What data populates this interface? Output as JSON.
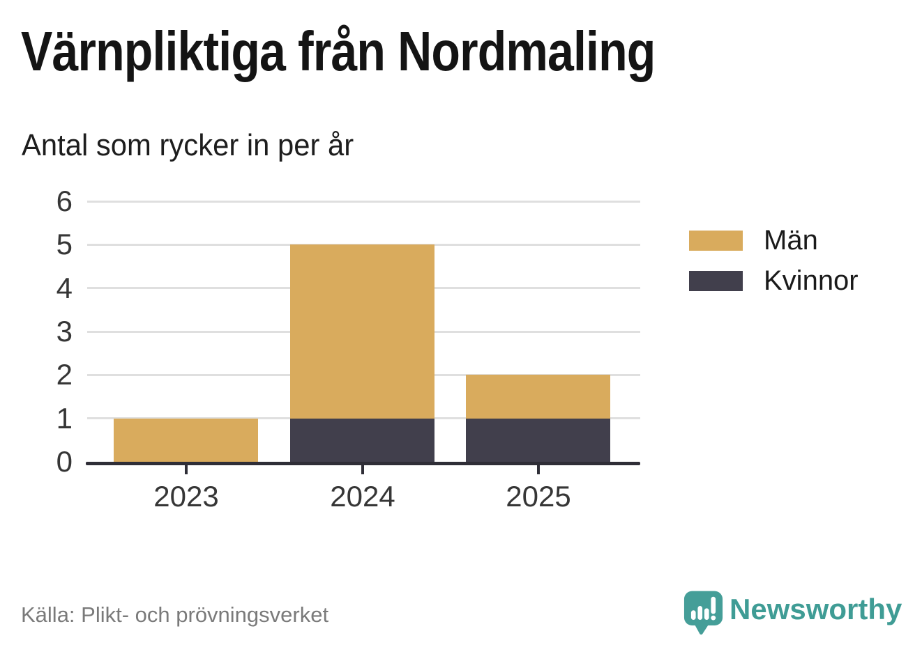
{
  "title": "Värnpliktiga från Nordmaling",
  "subtitle": "Antal som rycker in per år",
  "source": "Källa: Plikt- och prövningsverket",
  "branding": {
    "name": "Newsworthy",
    "icon": "newsworthy-speech-bubble-chart-icon",
    "icon_color": "#459e98",
    "text_color": "#3f9c95"
  },
  "legend": {
    "position": "right",
    "items": [
      {
        "label": "Män",
        "color": "#d9ab5d"
      },
      {
        "label": "Kvinnor",
        "color": "#413f4c"
      }
    ]
  },
  "colors": {
    "men_bar": "#d9ab5d",
    "women_bar": "#413f4c",
    "gridline": "#dfdfdf",
    "axis_line": "#2f2e37",
    "tick_label": "#363636",
    "source_text": "#7a7a7a"
  },
  "chart_data": {
    "type": "bar",
    "stacked": true,
    "title": "Värnpliktiga från Nordmaling",
    "subtitle": "Antal som rycker in per år",
    "categories": [
      "2023",
      "2024",
      "2025"
    ],
    "series": [
      {
        "name": "Män",
        "color": "#d9ab5d",
        "values": [
          1,
          4,
          1
        ]
      },
      {
        "name": "Kvinnor",
        "color": "#413f4c",
        "values": [
          0,
          1,
          1
        ]
      }
    ],
    "stack_order_bottom_to_top": [
      "Kvinnor",
      "Män"
    ],
    "totals": [
      1,
      5,
      2
    ],
    "xlabel": "",
    "ylabel": "",
    "ylim": [
      0,
      6
    ],
    "yticks": [
      0,
      1,
      2,
      3,
      4,
      5,
      6
    ],
    "grid": true,
    "legend_position": "right"
  }
}
